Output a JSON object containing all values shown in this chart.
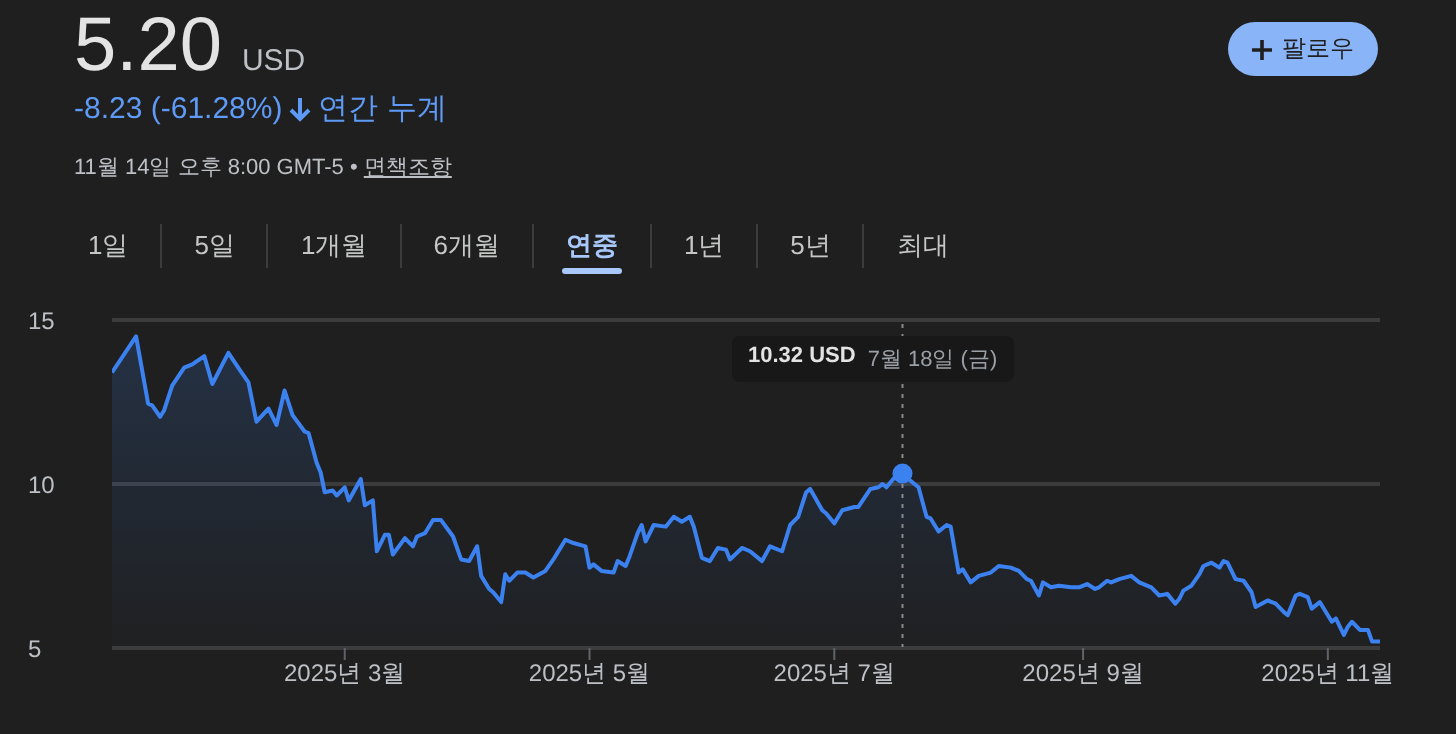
{
  "chart_data": {
    "type": "area",
    "title": "5.20",
    "subtitle": "USD",
    "annotations": [
      "-8.23 (-61.28%)",
      "연간 누계",
      "11월 14일 오후 8:00 GMT-5 •",
      "면책조항",
      "팔로우",
      "1일",
      "5일",
      "1개월",
      "6개월",
      "연중",
      "1년",
      "5년",
      "최대",
      "10.32 USD",
      "7월 18일 (금)"
    ],
    "x": [
      "2025-01-02",
      "2025-01-08",
      "2025-01-11",
      "2025-01-12",
      "2025-01-14",
      "2025-01-15",
      "2025-01-17",
      "2025-01-20",
      "2025-01-22",
      "2025-01-25",
      "2025-01-27",
      "2025-01-31",
      "2025-02-03",
      "2025-02-05",
      "2025-02-07",
      "2025-02-10",
      "2025-02-12",
      "2025-02-14",
      "2025-02-16",
      "2025-02-19",
      "2025-02-20",
      "2025-02-22",
      "2025-02-23",
      "2025-02-24",
      "2025-02-26",
      "2025-02-27",
      "2025-03-01",
      "2025-03-02",
      "2025-03-05",
      "2025-03-06",
      "2025-03-08",
      "2025-03-09",
      "2025-03-11",
      "2025-03-12",
      "2025-03-13",
      "2025-03-16",
      "2025-03-18",
      "2025-03-19",
      "2025-03-21",
      "2025-03-23",
      "2025-03-25",
      "2025-03-28",
      "2025-03-30",
      "2025-04-01",
      "2025-04-03",
      "2025-04-04",
      "2025-04-06",
      "2025-04-07",
      "2025-04-09",
      "2025-04-10",
      "2025-04-11",
      "2025-04-13",
      "2025-04-15",
      "2025-04-17",
      "2025-04-20",
      "2025-04-22",
      "2025-04-23",
      "2025-04-25",
      "2025-04-27",
      "2025-04-30",
      "2025-05-01",
      "2025-05-02",
      "2025-05-04",
      "2025-05-07",
      "2025-05-08",
      "2025-05-10",
      "2025-05-11",
      "2025-05-13",
      "2025-05-14",
      "2025-05-15",
      "2025-05-17",
      "2025-05-20",
      "2025-05-22",
      "2025-05-24",
      "2025-05-26",
      "2025-05-27",
      "2025-05-29",
      "2025-05-31",
      "2025-06-02",
      "2025-06-04",
      "2025-06-05",
      "2025-06-08",
      "2025-06-10",
      "2025-06-13",
      "2025-06-15",
      "2025-06-18",
      "2025-06-20",
      "2025-06-22",
      "2025-06-24",
      "2025-06-25",
      "2025-06-28",
      "2025-06-29",
      "2025-07-01",
      "2025-07-03",
      "2025-07-06",
      "2025-07-07",
      "2025-07-10",
      "2025-07-12",
      "2025-07-13",
      "2025-07-14",
      "2025-07-16",
      "2025-07-18",
      "2025-07-20",
      "2025-07-22",
      "2025-07-24",
      "2025-07-25",
      "2025-07-27",
      "2025-07-29",
      "2025-07-30",
      "2025-08-01",
      "2025-08-02",
      "2025-08-04",
      "2025-08-06",
      "2025-08-09",
      "2025-08-11",
      "2025-08-14",
      "2025-08-16",
      "2025-08-18",
      "2025-08-19",
      "2025-08-21",
      "2025-08-22",
      "2025-08-24",
      "2025-08-26",
      "2025-08-29",
      "2025-08-31",
      "2025-09-02",
      "2025-09-04",
      "2025-09-05",
      "2025-09-07",
      "2025-09-08",
      "2025-09-10",
      "2025-09-13",
      "2025-09-15",
      "2025-09-18",
      "2025-09-20",
      "2025-09-22",
      "2025-09-24",
      "2025-09-25",
      "2025-09-26",
      "2025-09-28",
      "2025-09-30",
      "2025-10-01",
      "2025-10-03",
      "2025-10-05",
      "2025-10-06",
      "2025-10-07",
      "2025-10-09",
      "2025-10-11",
      "2025-10-13",
      "2025-10-14",
      "2025-10-17",
      "2025-10-19",
      "2025-10-21",
      "2025-10-22",
      "2025-10-24",
      "2025-10-25",
      "2025-10-27",
      "2025-10-28",
      "2025-10-30",
      "2025-11-01",
      "2025-11-02",
      "2025-11-03",
      "2025-11-05",
      "2025-11-06",
      "2025-11-07",
      "2025-11-09",
      "2025-11-11",
      "2025-11-12",
      "2025-11-14"
    ],
    "series": [
      {
        "color": "#3b82f0",
        "values": [
          13.4,
          14.5,
          12.45,
          12.4,
          12.05,
          12.25,
          13.0,
          13.55,
          13.65,
          13.9,
          13.05,
          14.0,
          13.45,
          13.1,
          11.9,
          12.3,
          11.8,
          12.85,
          12.1,
          11.6,
          11.55,
          10.65,
          10.35,
          9.75,
          9.8,
          9.65,
          9.9,
          9.5,
          10.15,
          9.35,
          9.5,
          7.95,
          8.45,
          8.45,
          7.85,
          8.35,
          8.1,
          8.4,
          8.5,
          8.9,
          8.9,
          8.4,
          7.7,
          7.65,
          8.1,
          7.2,
          6.8,
          6.7,
          6.4,
          7.25,
          7.05,
          7.3,
          7.3,
          7.15,
          7.35,
          7.7,
          7.9,
          8.3,
          8.2,
          8.1,
          7.45,
          7.55,
          7.35,
          7.3,
          7.65,
          7.5,
          7.8,
          8.5,
          8.75,
          8.25,
          8.75,
          8.7,
          9.0,
          8.85,
          9.0,
          8.7,
          7.75,
          7.65,
          8.05,
          8.0,
          7.7,
          8.05,
          7.95,
          7.65,
          8.1,
          7.95,
          8.75,
          9.0,
          9.75,
          9.85,
          9.2,
          9.1,
          8.8,
          9.2,
          9.3,
          9.3,
          9.85,
          9.9,
          10.0,
          9.9,
          10.2,
          10.32,
          10.1,
          9.9,
          9.0,
          8.95,
          8.55,
          8.75,
          8.7,
          7.3,
          7.4,
          7.0,
          7.2,
          7.3,
          7.5,
          7.45,
          7.35,
          7.1,
          7.05,
          6.6,
          7.0,
          6.85,
          6.9,
          6.85,
          6.85,
          6.95,
          6.8,
          6.85,
          7.05,
          7.0,
          7.1,
          7.2,
          7.0,
          6.85,
          6.6,
          6.65,
          6.35,
          6.5,
          6.75,
          6.9,
          7.25,
          7.5,
          7.6,
          7.45,
          7.65,
          7.6,
          7.1,
          7.05,
          6.7,
          6.25,
          6.45,
          6.35,
          6.1,
          6.0,
          6.6,
          6.65,
          6.55,
          6.2,
          6.4,
          6.0,
          5.8,
          5.9,
          5.4,
          5.65,
          5.8,
          5.55,
          5.55,
          5.2,
          5.2
        ]
      }
    ],
    "xlim": [
      "2025-01-02",
      "2025-11-14"
    ],
    "xticks": [
      {
        "value": "2025-03-01",
        "label": "2025년 3월"
      },
      {
        "value": "2025-05-01",
        "label": "2025년 5월"
      },
      {
        "value": "2025-07-01",
        "label": "2025년 7월"
      },
      {
        "value": "2025-09-01",
        "label": "2025년 9월"
      },
      {
        "value": "2025-11-01",
        "label": "2025년 11월"
      }
    ],
    "ylim": [
      5,
      15
    ],
    "yticks": [
      5,
      10,
      15
    ],
    "grid": "y",
    "ref_lines": [
      {
        "axis": "x",
        "value": "2025-07-18",
        "color": "#8a8a8a",
        "line_style": "dotted"
      }
    ]
  }
}
